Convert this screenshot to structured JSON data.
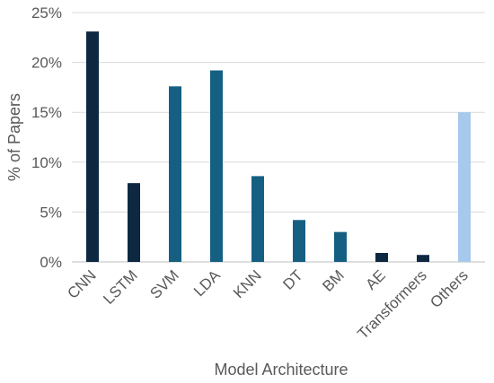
{
  "chart_data": {
    "type": "bar",
    "title": "",
    "xlabel": "Model Architecture",
    "ylabel": "% of Papers",
    "ylim": [
      0,
      25
    ],
    "y_ticks": [
      0,
      5,
      10,
      15,
      20,
      25
    ],
    "y_tick_format": "{v}%",
    "grid": true,
    "legend": "none",
    "categories": [
      "CNN",
      "LSTM",
      "SVM",
      "LDA",
      "KNN",
      "DT",
      "BM",
      "AE",
      "Transformers",
      "Others"
    ],
    "values": [
      23.1,
      7.9,
      17.6,
      19.2,
      8.6,
      4.2,
      3.0,
      0.9,
      0.7,
      15.0
    ],
    "bar_colors": [
      "#0e2841",
      "#0e2841",
      "#156082",
      "#156082",
      "#156082",
      "#156082",
      "#156082",
      "#0e2841",
      "#0e2841",
      "#a6c9ec"
    ]
  }
}
